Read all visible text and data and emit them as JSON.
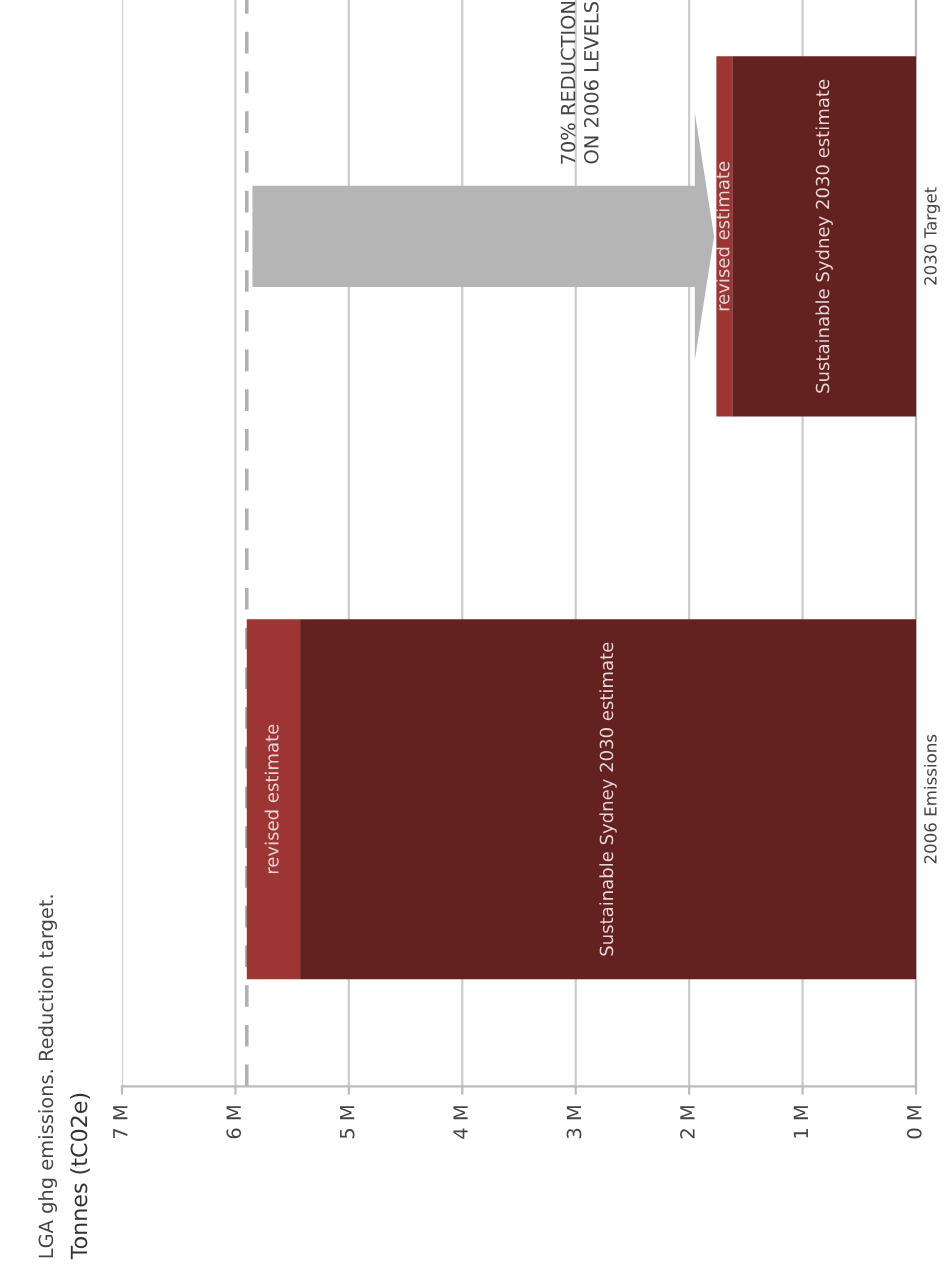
{
  "chart_data": {
    "type": "bar",
    "orientation": "horizontal",
    "stacked": true,
    "title": "LGA ghg emissions. Reduction target.",
    "subtitle": "Tonnes (tC02e)",
    "categories": [
      "2030 Target",
      "2006 Emissions"
    ],
    "series": [
      {
        "name": "Sustainable Sydney 2030 estimate",
        "color": "#63211f",
        "values": [
          1.62,
          5.43
        ]
      },
      {
        "name": "revised estimate",
        "color": "#9c3533",
        "values": [
          0.14,
          0.47
        ]
      }
    ],
    "xlim": [
      7,
      0
    ],
    "xticks": [
      {
        "value": 7,
        "label": "7 M"
      },
      {
        "value": 6,
        "label": "6 M"
      },
      {
        "value": 5,
        "label": "5 M"
      },
      {
        "value": 4,
        "label": "4 M"
      },
      {
        "value": 3,
        "label": "3 M"
      },
      {
        "value": 2,
        "label": "2 M"
      },
      {
        "value": 1,
        "label": "1 M"
      },
      {
        "value": 0,
        "label": "0 M"
      }
    ],
    "ref_lines": [
      {
        "axis": "x",
        "value": 5.9,
        "color": "#b0b0b0",
        "line_style": "dashed"
      }
    ],
    "annotations": [
      "70% REDUCTION\nON 2006 LEVELS"
    ],
    "grid": "x",
    "legend": false
  }
}
